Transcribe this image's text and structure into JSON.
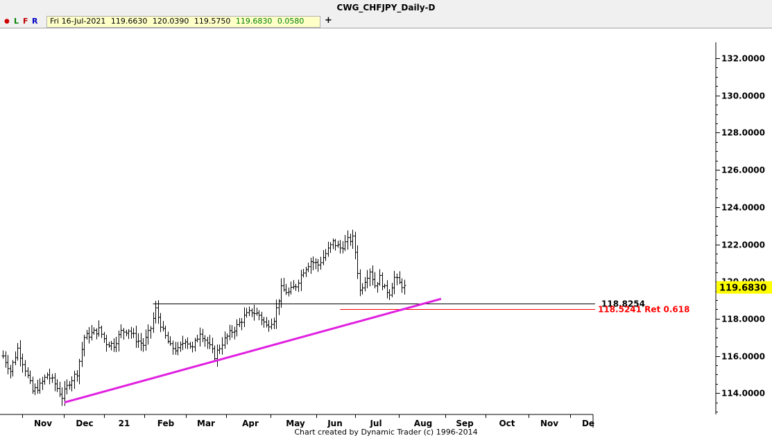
{
  "title": "CWG_CHFJPY_Daily-D",
  "toolbar": {
    "dot": "●",
    "l": "L",
    "f": "F",
    "r": "R",
    "plus": "+",
    "ohlc": {
      "date": "Fri 16-Jul-2021",
      "open": "119.6630",
      "high": "120.0390",
      "low": "119.5750",
      "close": "119.6830",
      "change": "0.0580"
    }
  },
  "credit": "Chart created by Dynamic Trader  (c) 1996-2014",
  "colors": {
    "trendline": "#e020e0",
    "retracement": "#ff0000",
    "highlight": "#ffff00",
    "bars": "#000000"
  },
  "chart_data": {
    "type": "ohlc",
    "y_axis_side": "right",
    "ylim": [
      113.3,
      133.3
    ],
    "y_ticks": [
      {
        "value": 132,
        "label": "132.0000"
      },
      {
        "value": 130,
        "label": "130.0000"
      },
      {
        "value": 128,
        "label": "128.0000"
      },
      {
        "value": 126,
        "label": "126.0000"
      },
      {
        "value": 124,
        "label": "124.0000"
      },
      {
        "value": 122,
        "label": "122.0000"
      },
      {
        "value": 120,
        "label": "120.0000"
      },
      {
        "value": 118,
        "label": "118.0000"
      },
      {
        "value": 116,
        "label": "116.0000"
      },
      {
        "value": 114,
        "label": "114.0000"
      }
    ],
    "x_ticks": [
      "Nov",
      "Dec",
      "21",
      "Feb",
      "Mar",
      "Apr",
      "May",
      "Jun",
      "Jul",
      "Aug",
      "Sep",
      "Oct",
      "Nov",
      "De"
    ],
    "last_price": {
      "value": 119.683,
      "label": "119.6830"
    },
    "levels": [
      {
        "name": "swing-high-level",
        "value": 118.8254,
        "label": "118.8254",
        "color": "#000000",
        "from_day": 61,
        "to_day": 250
      },
      {
        "name": "retracement-level",
        "value": 118.5241,
        "label": "118.5241 Ret 0.618",
        "color": "#ff0000",
        "from_day": 137,
        "to_day": 250
      }
    ],
    "trendline": {
      "from": {
        "day": 25,
        "value": 113.5
      },
      "to": {
        "day": 178,
        "value": 119.07
      }
    },
    "anchors": [
      {
        "day": 0,
        "value": 116.0
      },
      {
        "day": 3,
        "value": 115.2
      },
      {
        "day": 6,
        "value": 116.4
      },
      {
        "day": 9,
        "value": 115.3
      },
      {
        "day": 12,
        "value": 114.1
      },
      {
        "day": 15,
        "value": 114.4
      },
      {
        "day": 18,
        "value": 115.0
      },
      {
        "day": 21,
        "value": 114.5
      },
      {
        "day": 24,
        "value": 113.8
      },
      {
        "day": 27,
        "value": 114.6
      },
      {
        "day": 30,
        "value": 115.1
      },
      {
        "day": 33,
        "value": 117.0
      },
      {
        "day": 36,
        "value": 117.2
      },
      {
        "day": 39,
        "value": 117.4
      },
      {
        "day": 42,
        "value": 116.7
      },
      {
        "day": 45,
        "value": 116.6
      },
      {
        "day": 48,
        "value": 117.3
      },
      {
        "day": 51,
        "value": 117.4
      },
      {
        "day": 54,
        "value": 116.9
      },
      {
        "day": 57,
        "value": 116.6
      },
      {
        "day": 60,
        "value": 117.5
      },
      {
        "day": 62,
        "value": 118.5
      },
      {
        "day": 65,
        "value": 117.3
      },
      {
        "day": 68,
        "value": 116.5
      },
      {
        "day": 71,
        "value": 116.3
      },
      {
        "day": 74,
        "value": 116.9
      },
      {
        "day": 77,
        "value": 116.4
      },
      {
        "day": 80,
        "value": 117.3
      },
      {
        "day": 83,
        "value": 116.7
      },
      {
        "day": 86,
        "value": 116.0
      },
      {
        "day": 89,
        "value": 116.7
      },
      {
        "day": 92,
        "value": 117.2
      },
      {
        "day": 95,
        "value": 117.6
      },
      {
        "day": 98,
        "value": 118.1
      },
      {
        "day": 101,
        "value": 118.4
      },
      {
        "day": 104,
        "value": 118.2
      },
      {
        "day": 107,
        "value": 117.6
      },
      {
        "day": 110,
        "value": 118.0
      },
      {
        "day": 113,
        "value": 119.6
      },
      {
        "day": 116,
        "value": 119.4
      },
      {
        "day": 119,
        "value": 119.8
      },
      {
        "day": 122,
        "value": 120.6
      },
      {
        "day": 125,
        "value": 121.1
      },
      {
        "day": 128,
        "value": 120.9
      },
      {
        "day": 131,
        "value": 121.5
      },
      {
        "day": 134,
        "value": 122.1
      },
      {
        "day": 137,
        "value": 121.8
      },
      {
        "day": 140,
        "value": 122.2
      },
      {
        "day": 142,
        "value": 122.3
      },
      {
        "day": 143,
        "value": 121.6
      },
      {
        "day": 145,
        "value": 119.5
      },
      {
        "day": 147,
        "value": 120.1
      },
      {
        "day": 149,
        "value": 120.6
      },
      {
        "day": 151,
        "value": 119.8
      },
      {
        "day": 153,
        "value": 120.2
      },
      {
        "day": 155,
        "value": 119.6
      },
      {
        "day": 157,
        "value": 119.4
      },
      {
        "day": 159,
        "value": 120.2
      },
      {
        "day": 161,
        "value": 119.9
      },
      {
        "day": 163,
        "value": 119.7
      }
    ]
  }
}
